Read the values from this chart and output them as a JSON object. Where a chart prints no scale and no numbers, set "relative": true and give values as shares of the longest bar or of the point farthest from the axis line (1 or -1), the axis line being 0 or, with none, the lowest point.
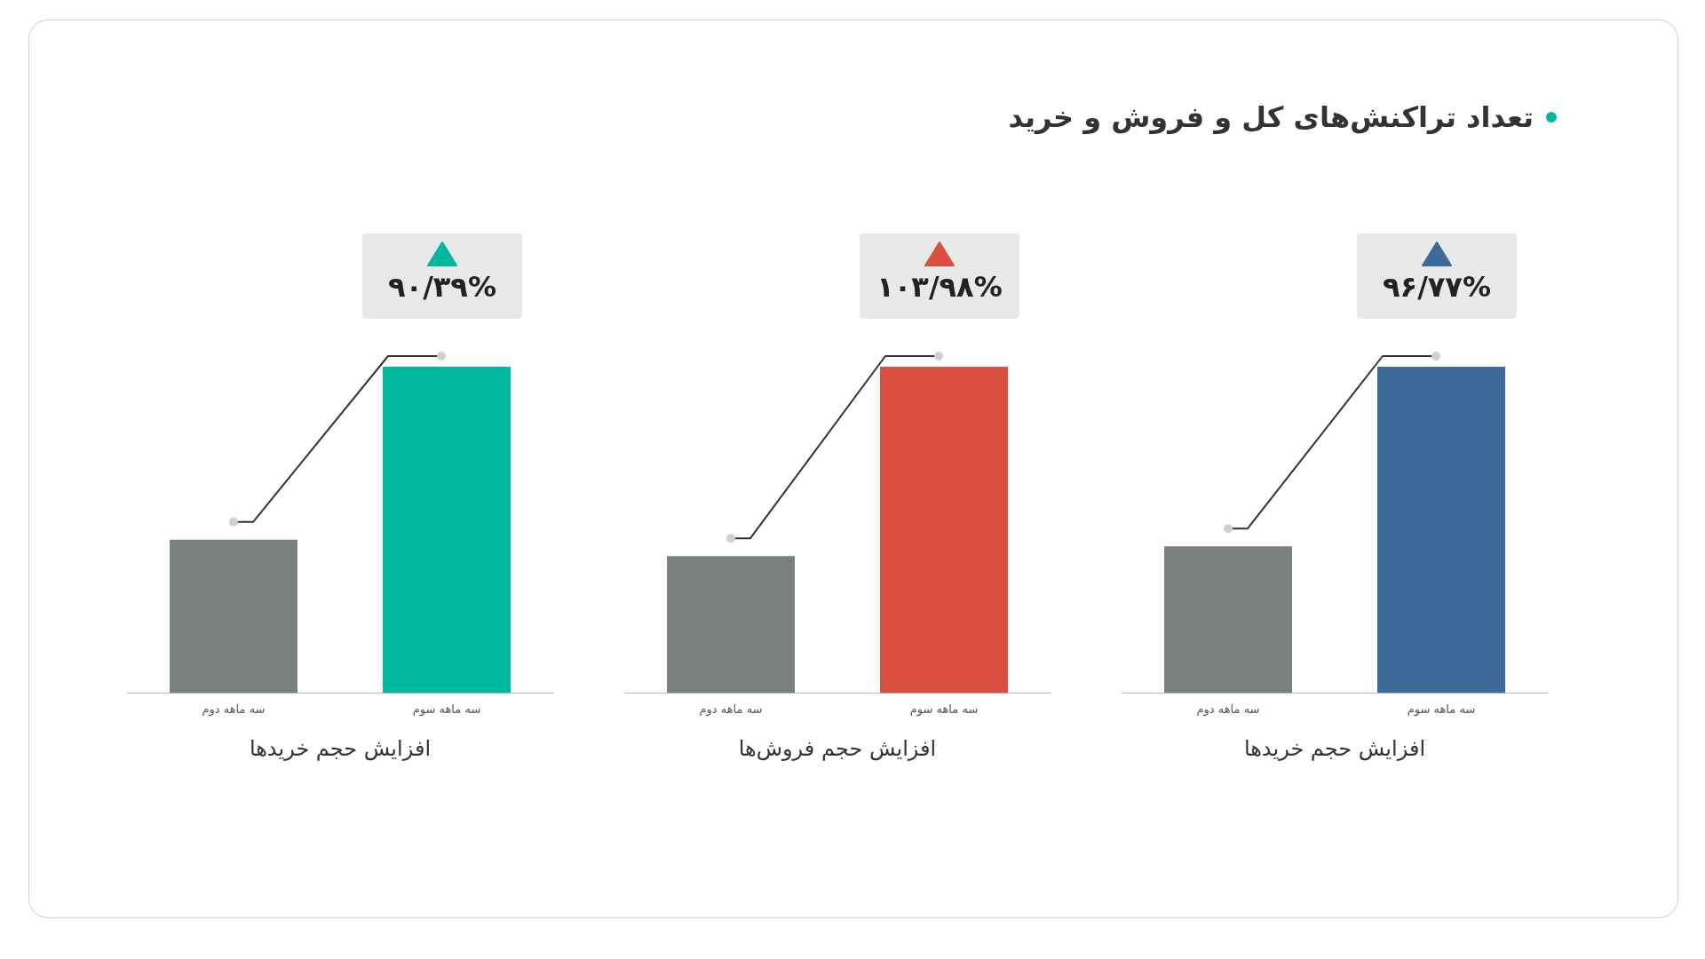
{
  "chart_data": [
    {
      "type": "bar",
      "relative": true,
      "xlabel": "افزایش حجم خریدها",
      "categories": [
        "سه ماهه دوم",
        "سه ماهه سوم"
      ],
      "values": [
        0.47,
        1
      ],
      "colors": [
        "#7c7f80",
        "#00b8a0"
      ],
      "annotations": [
        "۹۰/۳۹%"
      ]
    },
    {
      "type": "bar",
      "relative": true,
      "xlabel": "افزایش حجم فروش‌ها",
      "categories": [
        "سه ماهه دوم",
        "سه ماهه سوم"
      ],
      "values": [
        0.42,
        1
      ],
      "colors": [
        "#7c7f80",
        "#d95040"
      ],
      "annotations": [
        "۱۰۳/۹۸%"
      ]
    },
    {
      "type": "bar",
      "relative": true,
      "title": "تعداد تراکنش‌های کل و فروش و خرید",
      "xlabel": "افزایش حجم خریدها",
      "categories": [
        "سه ماهه دوم",
        "سه ماهه سوم"
      ],
      "values": [
        0.45,
        1
      ],
      "colors": [
        "#7c7f80",
        "#3d6a99"
      ],
      "annotations": [
        "۹۶/۷۷%"
      ]
    }
  ]
}
